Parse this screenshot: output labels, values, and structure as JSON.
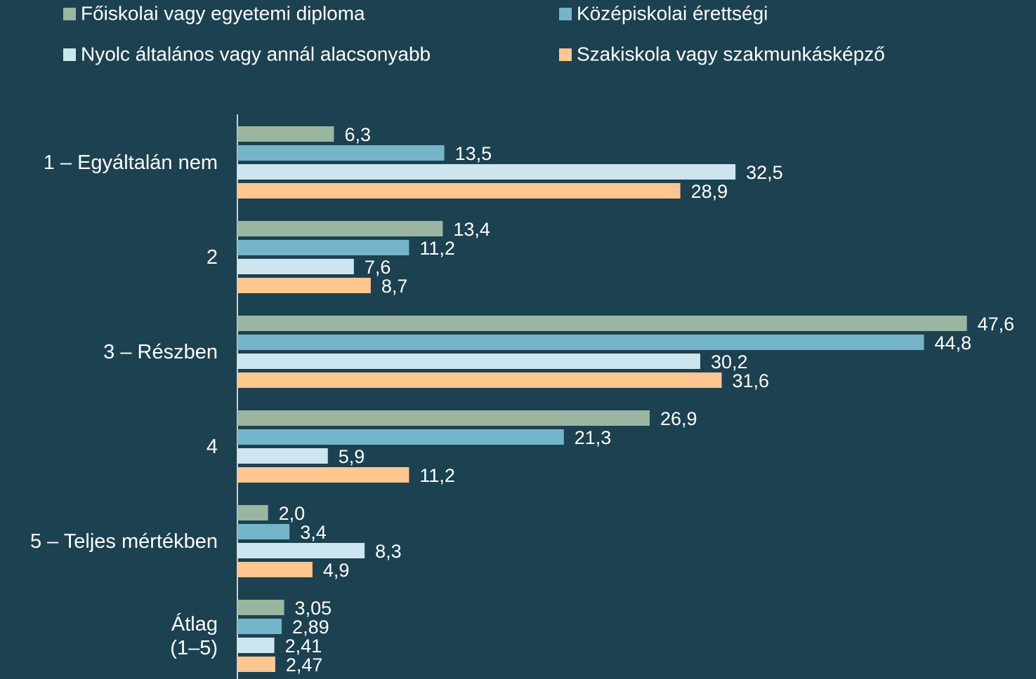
{
  "chart_data": {
    "type": "hbar",
    "categories": [
      "1 – Egyáltalán nem",
      "2",
      "3 – Részben",
      "4",
      "5 – Teljes mértékben",
      "Átlag\n(1–5)"
    ],
    "series": [
      {
        "name": "Főiskolai vagy egyetemi diploma",
        "color": "#9ab6a1",
        "values": [
          6.3,
          13.4,
          47.6,
          26.9,
          2.0,
          3.05
        ],
        "value_labels": [
          "6,3",
          "13,4",
          "47,6",
          "26,9",
          "2,0",
          "3,05"
        ]
      },
      {
        "name": "Középiskolai érettségi",
        "color": "#74b5c9",
        "values": [
          13.5,
          11.2,
          44.8,
          21.3,
          3.4,
          2.89
        ],
        "value_labels": [
          "13,5",
          "11,2",
          "44,8",
          "21,3",
          "3,4",
          "2,89"
        ]
      },
      {
        "name": "Nyolc általános vagy annál alacsonyabb",
        "color": "#cde5ee",
        "values": [
          32.5,
          7.6,
          30.2,
          5.9,
          8.3,
          2.41
        ],
        "value_labels": [
          "32,5",
          "7,6",
          "30,2",
          "5,9",
          "8,3",
          "2,41"
        ]
      },
      {
        "name": "Szakiskola vagy szakmunkásképző",
        "color": "#ffc690",
        "values": [
          28.9,
          8.7,
          31.6,
          11.2,
          4.9,
          2.47
        ],
        "value_labels": [
          "28,9",
          "8,7",
          "31,6",
          "11,2",
          "4,9",
          "2,47"
        ]
      }
    ],
    "xlim": [
      0,
      50
    ],
    "legend": "top"
  }
}
